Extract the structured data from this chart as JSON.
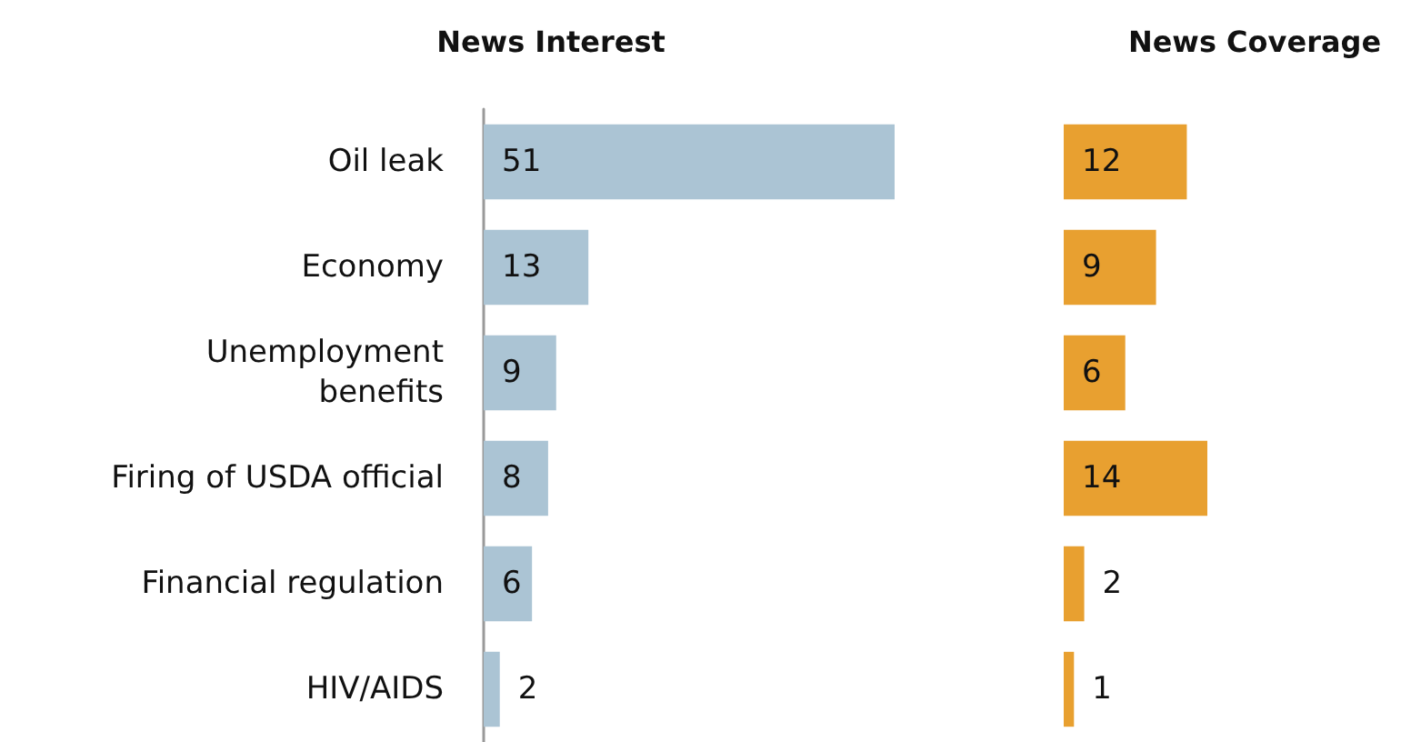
{
  "chart_data": [
    {
      "type": "bar",
      "orientation": "horizontal",
      "title": "News Interest",
      "categories": [
        "Oil leak",
        "Economy",
        "Unemployment\nbenefits",
        "Firing of USDA official",
        "Financial regulation",
        "HIV/AIDS"
      ],
      "series": [
        {
          "color": "#abc4d4",
          "values": [
            51,
            13,
            9,
            8,
            6,
            2
          ]
        }
      ],
      "data_labels": true,
      "tick_labels": "y"
    },
    {
      "type": "bar",
      "orientation": "horizontal",
      "title": "News Coverage",
      "categories": [
        null,
        null,
        null,
        null,
        null,
        null
      ],
      "series": [
        {
          "color": "#e8a030",
          "values": [
            12,
            9,
            6,
            14,
            2,
            1
          ]
        }
      ],
      "data_labels": true,
      "tick_labels": false
    }
  ]
}
